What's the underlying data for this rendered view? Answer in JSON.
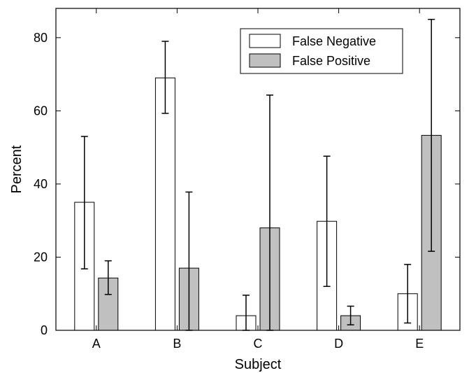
{
  "chart_data": {
    "type": "bar",
    "title": "",
    "xlabel": "Subject",
    "ylabel": "Percent",
    "categories": [
      "A",
      "B",
      "C",
      "D",
      "E"
    ],
    "ylim": [
      0,
      88
    ],
    "yticks": [
      0,
      20,
      40,
      60,
      80
    ],
    "grid": false,
    "legend_position": "top-right",
    "series": [
      {
        "name": "False Negative",
        "color": "#ffffff",
        "values": [
          35,
          69,
          4,
          29.8,
          10
        ],
        "error_low": [
          16.8,
          59.3,
          0,
          12,
          2
        ],
        "error_high": [
          53,
          79,
          9.6,
          47.6,
          18
        ]
      },
      {
        "name": "False Positive",
        "color": "#c0c0c0",
        "values": [
          14.3,
          17,
          28,
          4,
          53.3
        ],
        "error_low": [
          9.8,
          0,
          0,
          1.5,
          21.6
        ],
        "error_high": [
          19,
          37.8,
          64.3,
          6.6,
          85
        ]
      }
    ]
  }
}
